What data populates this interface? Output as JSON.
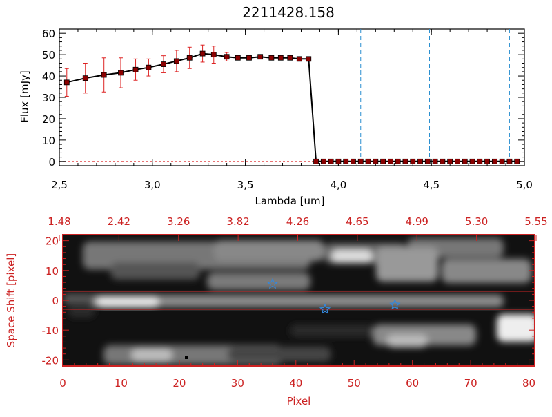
{
  "chart_data": [
    {
      "type": "line",
      "title": "2211428.158",
      "xlabel": "Lambda [um]",
      "ylabel": "Flux [mJy]",
      "xlim": [
        2.5,
        5.0
      ],
      "ylim": [
        -2,
        62
      ],
      "xticks": [
        2.5,
        3.0,
        3.5,
        4.0,
        4.5,
        5.0
      ],
      "xtick_labels": [
        "2,5",
        "3,0",
        "3,5",
        "4,0",
        "4,5",
        "5,0"
      ],
      "yticks": [
        0,
        10,
        20,
        30,
        40,
        50,
        60
      ],
      "ytick_labels": [
        "0",
        "10",
        "20",
        "30",
        "40",
        "50",
        "60"
      ],
      "colors": {
        "line": "#000000",
        "marker": "#8b0000",
        "errorbar": "#dd2222",
        "vline": "#2a8fd0"
      },
      "vlines": [
        4.12,
        4.49,
        4.92
      ],
      "series": [
        {
          "x": [
            2.54,
            2.64,
            2.74,
            2.83,
            2.91,
            2.98,
            3.06,
            3.13,
            3.2,
            3.27,
            3.33,
            3.4,
            3.46,
            3.52,
            3.58,
            3.64,
            3.69,
            3.74,
            3.79,
            3.84,
            3.88,
            3.92,
            3.96,
            4.0,
            4.04,
            4.08,
            4.12,
            4.16,
            4.2,
            4.24,
            4.28,
            4.32,
            4.36,
            4.4,
            4.44,
            4.48,
            4.52,
            4.56,
            4.6,
            4.64,
            4.68,
            4.72,
            4.76,
            4.8,
            4.84,
            4.88,
            4.92,
            4.96
          ],
          "y": [
            37,
            39,
            40.5,
            41.5,
            43,
            44,
            45.5,
            47,
            48.5,
            50.5,
            50,
            49,
            48.5,
            48.5,
            49,
            48.5,
            48.5,
            48.5,
            48,
            48,
            0,
            0,
            0,
            0,
            0,
            0,
            0,
            0,
            0,
            0,
            0,
            0,
            0,
            0,
            0,
            0,
            0,
            0,
            0,
            0,
            0,
            0,
            0,
            0,
            0,
            0,
            0,
            0
          ],
          "yerr": [
            6.5,
            7,
            8,
            7,
            5,
            4,
            4,
            5,
            5,
            4,
            4,
            2,
            1,
            1,
            1,
            1,
            1,
            1,
            1,
            1,
            0,
            0,
            0,
            0,
            0,
            0,
            0,
            0,
            0,
            0,
            0,
            0,
            0,
            0,
            0,
            0,
            0,
            0,
            0,
            0,
            0,
            0,
            0,
            0,
            0,
            0,
            0,
            0
          ]
        }
      ]
    },
    {
      "type": "heatmap",
      "xlabel": "Pixel",
      "ylabel": "Space Shift [pixel]",
      "xlim": [
        0,
        81
      ],
      "ylim": [
        -22,
        22
      ],
      "xticks": [
        0,
        10,
        20,
        30,
        40,
        50,
        60,
        70,
        80
      ],
      "xtick_labels": [
        "0",
        "10",
        "20",
        "30",
        "40",
        "50",
        "60",
        "70",
        "80"
      ],
      "yticks": [
        -20,
        -10,
        0,
        10,
        20
      ],
      "ytick_labels": [
        "-20",
        "-10",
        "0",
        "10",
        "20"
      ],
      "top_axis_tick_labels": [
        "1.48",
        "2.42",
        "3.26",
        "3.82",
        "4.26",
        "4.65",
        "4.99",
        "5.30",
        "5.55"
      ],
      "colors": {
        "axes": "#cc2222",
        "star": "#3388dd",
        "band": "#cc2222"
      },
      "extraction_band": [
        -3,
        3
      ],
      "stars": [
        {
          "x": 36,
          "y": 5.5
        },
        {
          "x": 45,
          "y": -3
        },
        {
          "x": 57,
          "y": -1.5
        }
      ]
    }
  ]
}
